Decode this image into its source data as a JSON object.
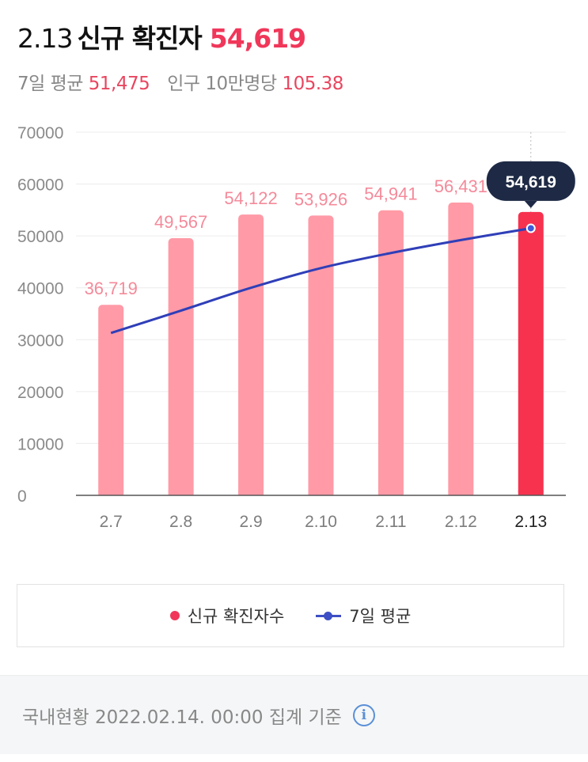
{
  "header": {
    "date": "2.13",
    "label": "신규 확진자",
    "count": "54,619",
    "avg_label": "7일 평균",
    "avg_value": "51,475",
    "per_label": "인구 10만명당",
    "per_value": "105.38"
  },
  "chart_data": {
    "type": "bar",
    "categories": [
      "2.7",
      "2.8",
      "2.9",
      "2.10",
      "2.11",
      "2.12",
      "2.13"
    ],
    "series": [
      {
        "name": "신규 확진자수",
        "values": [
          36719,
          49567,
          54122,
          53926,
          54941,
          56431,
          54619
        ],
        "labels": [
          "36,719",
          "49,567",
          "54,122",
          "53,926",
          "54,941",
          "56,431",
          "54,619"
        ],
        "color": "#ff9aa6",
        "highlight_color": "#f7324f",
        "kind": "bar"
      },
      {
        "name": "7일 평균",
        "values": [
          31300,
          35600,
          40000,
          43800,
          46700,
          49200,
          51475
        ],
        "color": "#2f3fb8",
        "kind": "line"
      }
    ],
    "yticks": [
      0,
      10000,
      20000,
      30000,
      40000,
      50000,
      60000,
      70000
    ],
    "ylim": [
      0,
      70000
    ],
    "highlight_index": 6,
    "tooltip": "54,619",
    "grid": true,
    "legend_position": "bottom"
  },
  "legend": {
    "bar_label": "신규 확진자수",
    "line_label": "7일 평균"
  },
  "footer": {
    "text": "국내현황 2022.02.14. 00:00 집계 기준",
    "info_icon": "info-icon"
  }
}
